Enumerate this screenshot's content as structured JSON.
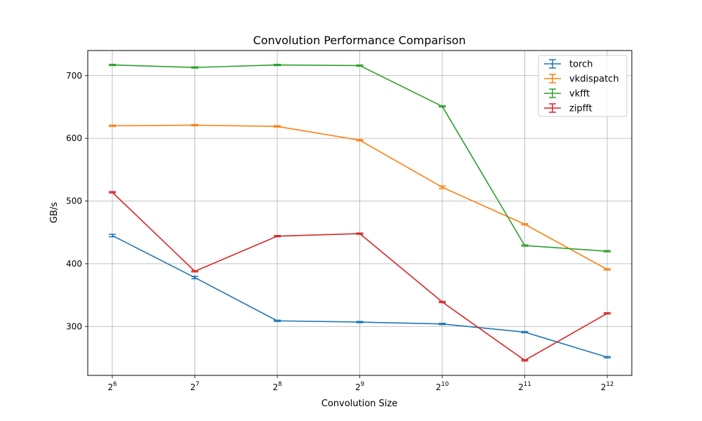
{
  "chart_data": {
    "type": "line",
    "title": "Convolution Performance Comparison",
    "xlabel": "Convolution Size",
    "ylabel": "GB/s",
    "x_tick_base": "2",
    "x_tick_exponents": [
      "6",
      "7",
      "8",
      "9",
      "10",
      "11",
      "12"
    ],
    "x": [
      64,
      128,
      256,
      512,
      1024,
      2048,
      4096
    ],
    "xscale": "log2",
    "yticks": [
      "300",
      "400",
      "500",
      "600",
      "700"
    ],
    "ylim": [
      222,
      740
    ],
    "grid": true,
    "legend_position": "top-right",
    "series": [
      {
        "name": "torch",
        "color": "#1f77b4",
        "values": [
          445,
          378,
          309,
          307,
          304,
          291,
          251
        ],
        "errors": [
          2,
          2,
          1,
          1,
          1,
          1,
          1
        ]
      },
      {
        "name": "vkdispatch",
        "color": "#ff7f0e",
        "values": [
          620,
          621,
          619,
          597,
          522,
          463,
          391
        ],
        "errors": [
          1,
          1,
          1,
          1,
          2,
          1,
          1
        ]
      },
      {
        "name": "vkfft",
        "color": "#2ca02c",
        "values": [
          717,
          713,
          717,
          716,
          651,
          429,
          420
        ],
        "errors": [
          1,
          1,
          1,
          1,
          1,
          1,
          1
        ]
      },
      {
        "name": "zipfft",
        "color": "#d62728",
        "values": [
          514,
          388,
          444,
          448,
          339,
          246,
          321
        ],
        "errors": [
          1,
          1,
          1,
          1,
          1,
          1,
          1
        ]
      }
    ]
  }
}
